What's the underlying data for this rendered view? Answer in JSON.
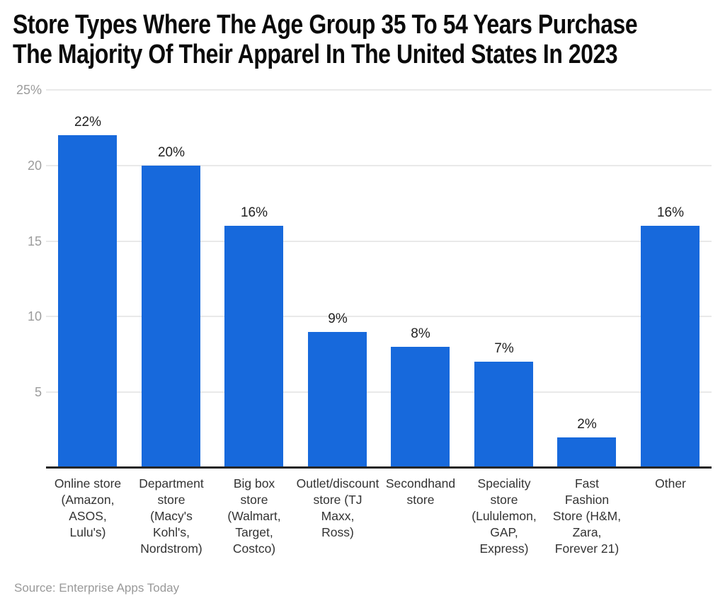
{
  "title": {
    "lines": [
      "Store Types Where The Age Group 35 To 54 Years Purchase",
      "The Majority Of Their Apparel In The United States In 2023"
    ],
    "full": "Store Types Where The Age Group 35 To 54 Years Purchase The Majority Of Their Apparel In The United States In 2023"
  },
  "source": {
    "text": "Source: Enterprise Apps Today"
  },
  "colors": {
    "bar": "#1769dc",
    "grid": "#e9e9e9",
    "axis": "#262626",
    "tick_label": "#9c9c9c",
    "value_label": "#222222",
    "category_label": "#333333",
    "source": "#999999",
    "title": "#0b0b0b",
    "background": "#ffffff"
  },
  "chart_data": {
    "type": "bar",
    "title": "Store Types Where The Age Group 35 To 54 Years Purchase The Majority Of Their Apparel In The United States In 2023",
    "unit": "%",
    "categories": [
      "Online store (Amazon, ASOS, Lulu's)",
      "Department store (Macy's Kohl's, Nordstrom)",
      "Big box store (Walmart, Target, Costco)",
      "Outlet/discount store (TJ Maxx, Ross)",
      "Secondhand store",
      "Speciality store (Lululemon, GAP, Express)",
      "Fast Fashion Store (H&M, Zara, Forever 21)",
      "Other"
    ],
    "category_lines": [
      [
        "Online store",
        "(Amazon,",
        "ASOS,",
        "Lulu's)"
      ],
      [
        "Department",
        "store",
        "(Macy's",
        "Kohl's,",
        "Nordstrom)"
      ],
      [
        "Big box",
        "store",
        "(Walmart,",
        "Target,",
        "Costco)"
      ],
      [
        "Outlet/discount",
        "store (TJ",
        "Maxx,",
        "Ross)"
      ],
      [
        "Secondhand",
        "store"
      ],
      [
        "Speciality",
        "store",
        "(Lululemon,",
        "GAP,",
        "Express)"
      ],
      [
        "Fast",
        "Fashion",
        "Store (H&M,",
        "Zara,",
        "Forever 21)"
      ],
      [
        "Other"
      ]
    ],
    "values": [
      22,
      20,
      16,
      9,
      8,
      7,
      2,
      16
    ],
    "value_labels": [
      "22%",
      "20%",
      "16%",
      "9%",
      "8%",
      "7%",
      "2%",
      "16%"
    ],
    "xlabel": "",
    "ylabel": "",
    "ylim": [
      0,
      25
    ],
    "yticks": [
      {
        "value": 5,
        "label": "5"
      },
      {
        "value": 10,
        "label": "10"
      },
      {
        "value": 15,
        "label": "15"
      },
      {
        "value": 20,
        "label": "20"
      },
      {
        "value": 25,
        "label": "25%"
      }
    ],
    "grid": true,
    "legend": false,
    "source": "Enterprise Apps Today"
  }
}
